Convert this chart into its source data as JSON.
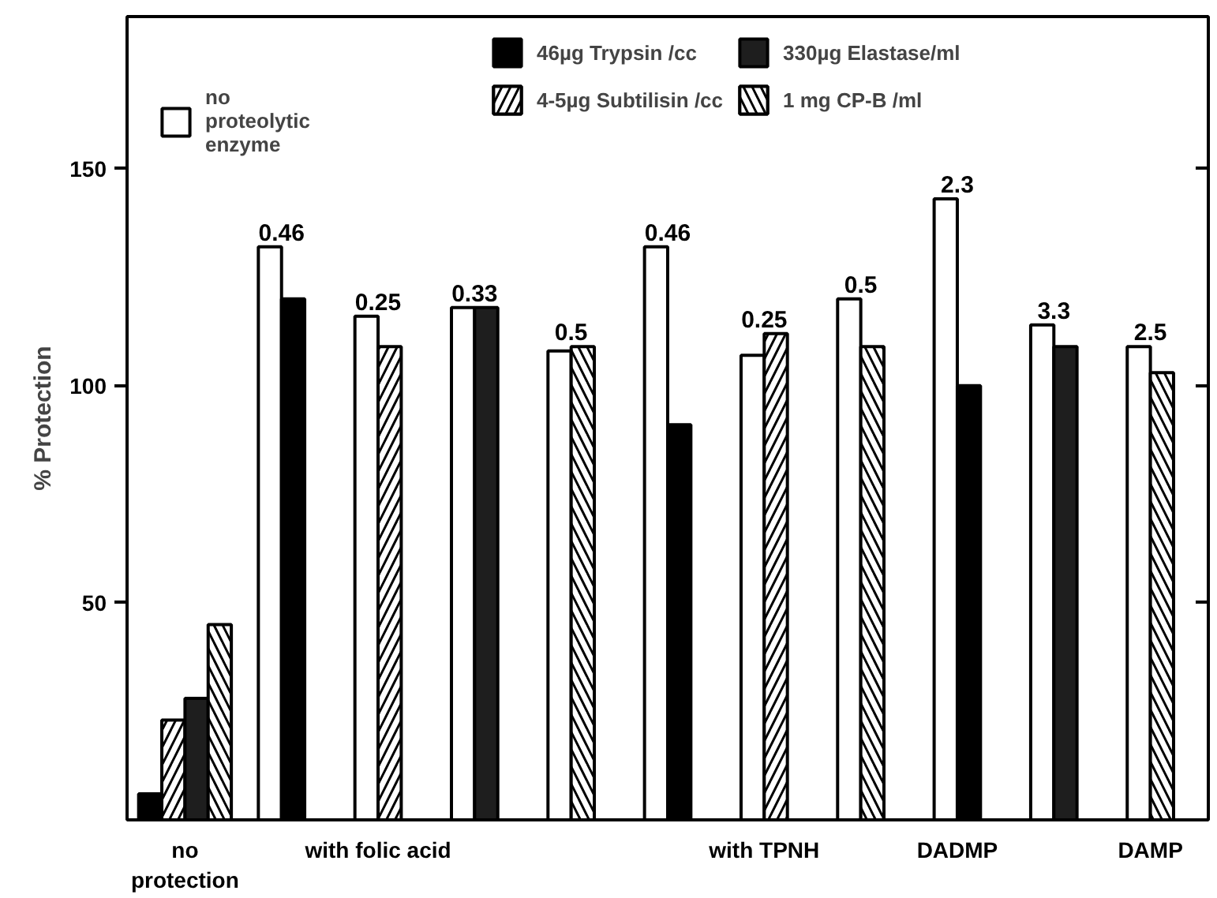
{
  "chart_data": {
    "type": "bar",
    "ylabel": "% Protection",
    "ylim": [
      0,
      185
    ],
    "yticks": [
      50,
      100,
      150
    ],
    "categories": [
      "no\nprotection",
      null,
      "with folic acid",
      null,
      null,
      null,
      "with TPNH",
      null,
      "DADMP",
      null,
      "DAMP"
    ],
    "series": [
      {
        "name": "no\nproteolytic\nenzyme",
        "color": "#ffffff",
        "values": [
          null,
          132,
          116,
          118,
          108,
          132,
          107,
          120,
          143,
          114,
          109
        ]
      },
      {
        "name": "46µg Trypsin /cc",
        "color": "#000000",
        "values": [
          6,
          120,
          null,
          null,
          null,
          91,
          null,
          null,
          100,
          null,
          null
        ]
      },
      {
        "name": "4-5µg Subtilisin /cc",
        "color": "#ffffff",
        "values": [
          23,
          null,
          109,
          null,
          null,
          null,
          112,
          null,
          null,
          null,
          null
        ]
      },
      {
        "name": "330µg Elastase/ml",
        "color": "#1e1e1e",
        "values": [
          28,
          null,
          null,
          118,
          null,
          null,
          null,
          null,
          null,
          109,
          null
        ]
      },
      {
        "name": "1 mg CP-B /ml",
        "color": "#ffffff",
        "values": [
          45,
          null,
          null,
          null,
          109,
          null,
          null,
          109,
          null,
          null,
          103
        ]
      }
    ],
    "annotations": [
      "0.46",
      "0.25",
      "0.33",
      "0.5",
      "0.46",
      "0.25",
      "0.5",
      "2.3",
      "3.3",
      "2.5"
    ],
    "grid": false,
    "legend": "top"
  }
}
